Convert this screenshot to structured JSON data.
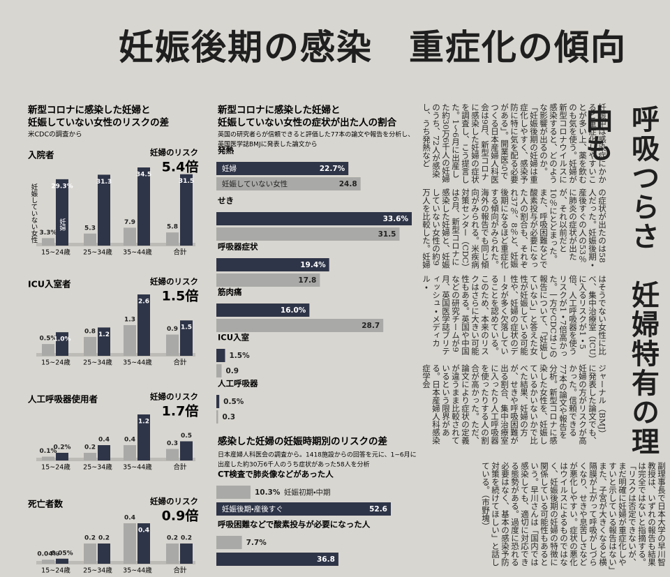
{
  "headline": "妊娠後期の感染　重症化の傾向",
  "sub_headline": "呼吸つらさ　妊婦特有の理由も",
  "article": {
    "blocks": [
      "妊娠中は感染症にかかると重症化しやすいことが多い上、薬を飲むのも気を使う。妊婦が新型コロナウイルスに感染すると、どのような影響が出るのか。「妊娠後期の妊婦は重症化しやすく、感染予防に特に気を配る必要がある」。開業医らでつくる日本産婦人科医会は9月、新型コロナに感染した妊婦の症状を調査し、こう提言した。1～6月に出産した約30万6千人の妊婦のうち、72人が感染し、うち発熱など",
      "の症状が出たのは58人だった。妊娠後期・産後すぐの人の53％に肺炎の症状が出たが、それ以前だと10％にとどまった。また、呼吸困難などで酸素投与が必要になった人の割合も、それぞれ37％、8％と、妊娠後期になるほど重症化する傾向がみられた。海外の報告でも同じ傾向がみられる。米疾病対策センター（CDC）は6月、新型コロナに感染した妊婦と、妊娠していない女性の約9万人を比較した。妊婦",
      "はそうでない女性に比べ、集中治療室（ICU）に入るリスクが1・5倍、人工呼吸器を使うリスクが1・7倍高かった。一方でCDCはこの報告について、「妊娠していない」と答えた女性が妊娠している可能性や、妊婦の症状のデータが多く欠落していることを認めている。このため、本来のリスクはさらに大きい可能性もある。英国や中国などの研究チームが9月、英国医学誌ブリティッシュ・メディカル・",
      "ジャーナル（BMJ）に発表した論文でも、妊婦の方がリスクが高かった。信頼できる77本の論文や報告を分析。新型コロナに感染した女性を、妊娠しているかいないかで比べた結果、妊婦の方が、せきや呼吸困難が出る割合、集中治療室に入ったり人工呼吸器を使ったりする人の割合が高かった。ただ、論文により症状の定義が違うまま比較されているという限界がある。日本産婦人科感染症学会",
      "副理事長で日本大学の早川智教授は、いずれの報告も結果は完全ではないと指摘する。「リスクは否定できないが、まだ明確に妊婦が重症化しやすいと示している報告はない」また、子宮が大きくなると横隔膜が上がって呼吸がしづらくなり、せきや息苦しさなどが悪化しやすい。症状の悪化はウイルスによるものではなく、妊娠後期の妊婦の特徴に関係している可能性もあるという。早川さんは「国内では感染しても、適切に対応できる態勢がある。過度に恐れる必要はなく、基本の感染予防対策を続けてほしい」と話している。（市野塊）"
    ]
  },
  "chart_data": [
    {
      "type": "bar",
      "section_title": [
        "新型コロナに感染した妊婦と",
        "妊娠していない女性のリスクの差"
      ],
      "note": "米CDCの調査から",
      "title": "入院者",
      "risk_title": "妊婦のリスク",
      "risk": {
        "value": 5.4,
        "label": "5.4倍"
      },
      "categories": [
        "15~24歳",
        "25~34歳",
        "35~44歳",
        "合計"
      ],
      "series": [
        {
          "name": "妊娠していない女性",
          "color": "#a9a9a7",
          "values": [
            3.3,
            5.3,
            7.9,
            5.8
          ],
          "value_labels": [
            "3.3%",
            "5.3",
            "7.9",
            "5.8"
          ]
        },
        {
          "name": "妊婦",
          "color": "#2f3548",
          "values": [
            29.3,
            31.3,
            34.5,
            31.5
          ],
          "value_labels": [
            "29.3%",
            "31.3",
            "34.5",
            "31.5"
          ]
        }
      ]
    },
    {
      "type": "bar",
      "title": "ICU入室者",
      "risk_title": "妊婦のリスク",
      "risk": {
        "value": 1.5,
        "label": "1.5倍"
      },
      "categories": [
        "15~24歳",
        "25~34歳",
        "35~44歳",
        "合計"
      ],
      "series": [
        {
          "color": "#a9a9a7",
          "values": [
            0.5,
            0.8,
            1.3,
            0.9
          ],
          "value_labels": [
            "0.5%",
            "0.8",
            "1.3",
            "0.9"
          ]
        },
        {
          "color": "#2f3548",
          "values": [
            1.0,
            1.2,
            2.6,
            1.5
          ],
          "value_labels": [
            "1.0%",
            "1.2",
            "2.6",
            "1.5"
          ]
        }
      ]
    },
    {
      "type": "bar",
      "title": "人工呼吸器使用者",
      "risk_title": "妊婦のリスク",
      "risk": {
        "value": 1.7,
        "label": "1.7倍"
      },
      "categories": [
        "15~24歳",
        "25~34歳",
        "35~44歳",
        "合計"
      ],
      "series": [
        {
          "color": "#a9a9a7",
          "values": [
            0.1,
            0.2,
            0.4,
            0.3
          ],
          "value_labels": [
            "0.1%",
            "0.2",
            "0.4",
            "0.3"
          ]
        },
        {
          "color": "#2f3548",
          "values": [
            0.2,
            0.4,
            1.2,
            0.5
          ],
          "value_labels": [
            "0.2%",
            "0.4",
            "1.2",
            "0.5"
          ]
        }
      ]
    },
    {
      "type": "bar",
      "title": "死亡者数",
      "risk_title": "妊婦のリスク",
      "risk": {
        "value": 0.9,
        "label": "0.9倍"
      },
      "categories": [
        "15~24歳",
        "25~34歳",
        "35~44歳",
        "合計"
      ],
      "series": [
        {
          "color": "#a9a9a7",
          "values": [
            0.04,
            0.2,
            0.4,
            0.2
          ],
          "value_labels": [
            "0.04%",
            "0.2",
            "0.4",
            "0.2"
          ]
        },
        {
          "color": "#2f3548",
          "values": [
            0.05,
            0.2,
            0.4,
            0.2
          ],
          "value_labels": [
            "0.05%",
            "0.2",
            "0.4",
            "0.2"
          ]
        }
      ]
    },
    {
      "type": "hbar",
      "title": [
        "新型コロナに感染した妊婦と",
        "妊娠していない女性の症状が出た人の割合"
      ],
      "note": [
        "英国の研究者らが信頼できると評価した77本の論文や報告を分析し、",
        "英国医学誌BMJに発表した論文から"
      ],
      "categories": [
        "発熱",
        "せき",
        "呼吸器症状",
        "筋肉痛",
        "ICU入室",
        "人工呼吸器"
      ],
      "series": [
        {
          "name": "妊婦",
          "color": "#2f3548",
          "values": [
            22.7,
            33.6,
            19.4,
            16.0,
            1.5,
            0.5
          ],
          "value_labels": [
            "22.7%",
            "33.6%",
            "19.4%",
            "16.0%",
            "1.5%",
            "0.5%"
          ]
        },
        {
          "name": "妊娠していない女性",
          "color": "#a9a9a7",
          "values": [
            24.8,
            31.5,
            17.8,
            28.7,
            0.9,
            0.3
          ]
        }
      ]
    },
    {
      "type": "hbar",
      "title": [
        "感染した妊婦の妊娠時期別のリスクの差"
      ],
      "note": [
        "日本産婦人科医会の調査から。1418施設からの回答を元に、1~6月に",
        "出産した約30万6千人のうち症状があった58人を分析"
      ],
      "categories": [
        "CT検査で肺炎像などがあった人",
        "呼吸困難などで酸素投与が必要になった人"
      ],
      "series": [
        {
          "name": "妊娠初期・中期",
          "color": "#a9a9a7",
          "values": [
            10.3,
            7.7
          ],
          "value_labels": [
            "10.3%",
            "7.7%"
          ]
        },
        {
          "name": "妊娠後期・産後すぐ",
          "color": "#2f3548",
          "values": [
            52.6,
            36.8
          ]
        }
      ]
    }
  ]
}
